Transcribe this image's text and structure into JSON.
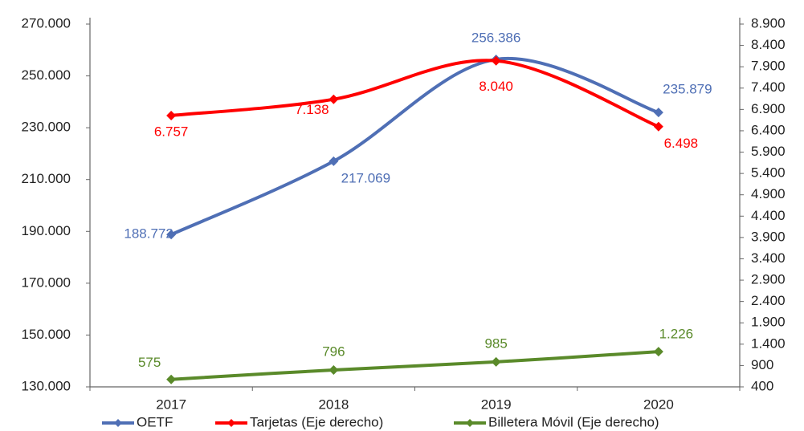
{
  "chart_data": {
    "type": "line",
    "categories": [
      "2017",
      "2018",
      "2019",
      "2020"
    ],
    "series": [
      {
        "name": "OETF",
        "color": "#4f6fb5",
        "values": [
          188772,
          217069,
          256386,
          235879
        ],
        "value_labels": [
          "188.772",
          "217.069",
          "256.386",
          "235.879"
        ]
      },
      {
        "name": "Tarjetas  (Eje derecho)",
        "color": "#ff0000",
        "axis": "y2",
        "values": [
          6757,
          7138,
          8040,
          6498
        ],
        "value_labels": [
          "6.757",
          "7.138",
          "8.040",
          "6.498"
        ]
      },
      {
        "name": "Billetera Móvil  (Eje derecho)",
        "color": "#5a8a2a",
        "axis": "y2",
        "values": [
          575,
          796,
          985,
          1226
        ],
        "value_labels": [
          "575",
          "796",
          "985",
          "1.226"
        ]
      }
    ],
    "ylim": [
      130000,
      270000
    ],
    "yticks": [
      {
        "value": 130000,
        "label": "130.000"
      },
      {
        "value": 150000,
        "label": "150.000"
      },
      {
        "value": 170000,
        "label": "170.000"
      },
      {
        "value": 190000,
        "label": "190.000"
      },
      {
        "value": 210000,
        "label": "210.000"
      },
      {
        "value": 230000,
        "label": "230.000"
      },
      {
        "value": 250000,
        "label": "250.000"
      },
      {
        "value": 270000,
        "label": "270.000"
      }
    ],
    "y2lim": [
      400,
      8900
    ],
    "y2ticks": [
      400,
      900,
      {
        "value": 1400,
        "label": "1.400"
      },
      {
        "value": 1900,
        "label": "1.900"
      },
      {
        "value": 2400,
        "label": "2.400"
      },
      {
        "value": 2900,
        "label": "2.900"
      },
      {
        "value": 3400,
        "label": "3.400"
      },
      {
        "value": 3900,
        "label": "3.900"
      },
      {
        "value": 4400,
        "label": "4.400"
      },
      {
        "value": 4900,
        "label": "4.900"
      },
      {
        "value": 5400,
        "label": "5.400"
      },
      {
        "value": 5900,
        "label": "5.900"
      },
      {
        "value": 6400,
        "label": "6.400"
      },
      {
        "value": 6900,
        "label": "6.900"
      },
      {
        "value": 7400,
        "label": "7.400"
      },
      {
        "value": 7900,
        "label": "7.900"
      },
      {
        "value": 8400,
        "label": "8.400"
      },
      {
        "value": 8900,
        "label": "8.900"
      }
    ],
    "legend": "bottom",
    "grid": false
  }
}
